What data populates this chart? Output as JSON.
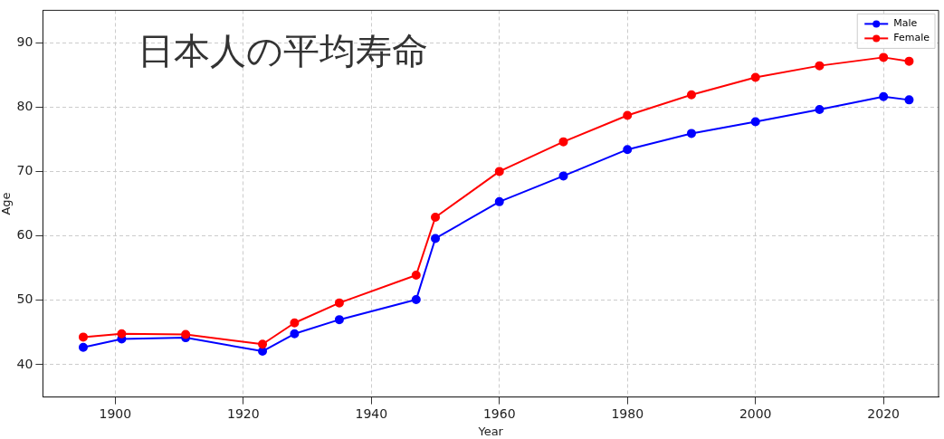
{
  "chart_data": {
    "type": "line",
    "xlabel": "Year",
    "ylabel": "Age",
    "annotations": [
      "日本人の平均寿命"
    ],
    "x": [
      1895,
      1901,
      1911,
      1923,
      1928,
      1935,
      1947,
      1950,
      1960,
      1970,
      1980,
      1990,
      2000,
      2010,
      2020,
      2024
    ],
    "series": [
      {
        "name": "Male",
        "color": "#0000ff",
        "values": [
          42.7,
          44.0,
          44.2,
          42.1,
          44.8,
          47.0,
          50.1,
          59.6,
          65.3,
          69.3,
          73.4,
          75.9,
          77.7,
          79.6,
          81.6,
          81.1
        ]
      },
      {
        "name": "Female",
        "color": "#ff0000",
        "values": [
          44.3,
          44.8,
          44.7,
          43.2,
          46.5,
          49.6,
          53.9,
          62.9,
          70.0,
          74.6,
          78.7,
          81.9,
          84.6,
          86.4,
          87.7,
          87.1
        ]
      }
    ],
    "xlim": [
      1888.7,
      2028.6
    ],
    "xticks": [
      1900,
      1920,
      1940,
      1960,
      1980,
      2000,
      2020
    ],
    "ylim": [
      35,
      95
    ],
    "yticks": [
      40,
      50,
      60,
      70,
      80,
      90
    ],
    "grid": true,
    "legend": "top right",
    "marker": "circle",
    "line_style": "solid"
  }
}
